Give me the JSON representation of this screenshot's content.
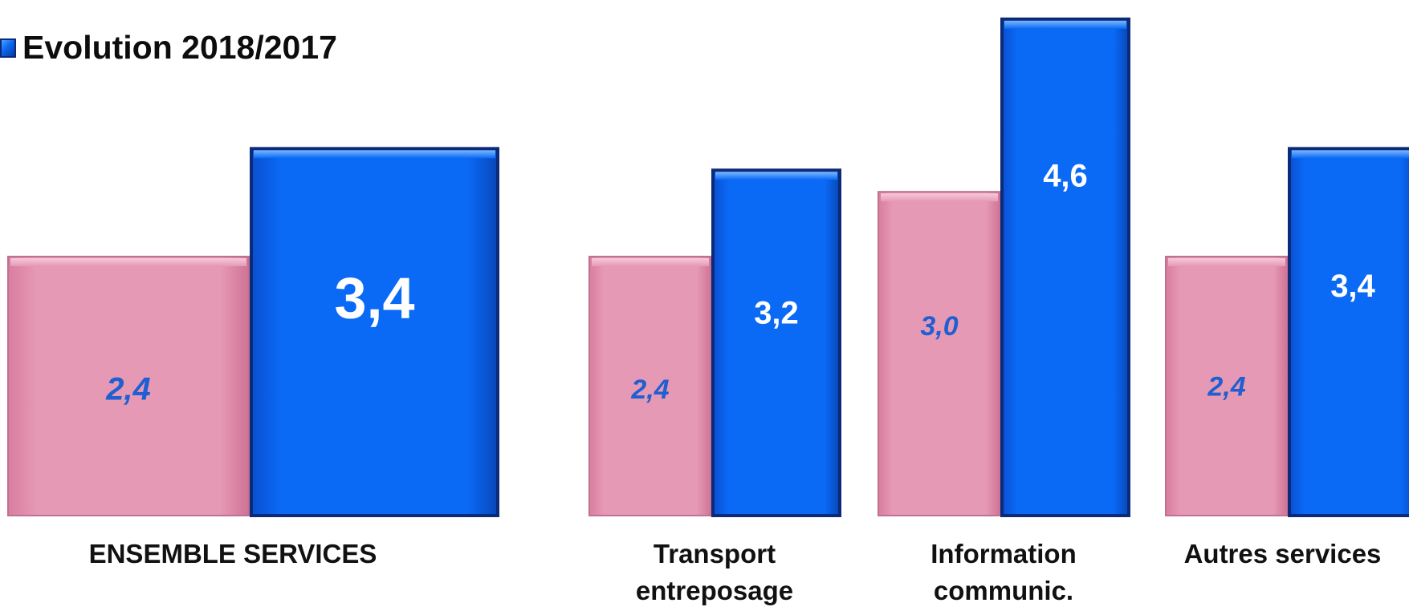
{
  "legend": {
    "label": "Evolution 2018/2017"
  },
  "chart_data": {
    "type": "bar",
    "categories": [
      "ENSEMBLE SERVICES",
      "Transport entreposage",
      "Information communic.",
      "Autres services"
    ],
    "series": [
      {
        "values": [
          2.4,
          2.4,
          3.0,
          2.4
        ],
        "color": "#e597b2"
      },
      {
        "name": "Evolution 2018/2017",
        "values": [
          3.4,
          3.2,
          4.6,
          3.4
        ],
        "color": "#0a66f0"
      }
    ],
    "data_labels": [
      [
        "2,4",
        "3,4"
      ],
      [
        "2,4",
        "3,2"
      ],
      [
        "3,0",
        "4,6"
      ],
      [
        "2,4",
        "3,4"
      ]
    ],
    "category_labels": [
      "ENSEMBLE SERVICES",
      "Transport\nentreposage",
      "Information\ncommunic.",
      "Autres services"
    ],
    "ylim": [
      0,
      4.9
    ],
    "grid": false,
    "legend_position": "top-left"
  }
}
